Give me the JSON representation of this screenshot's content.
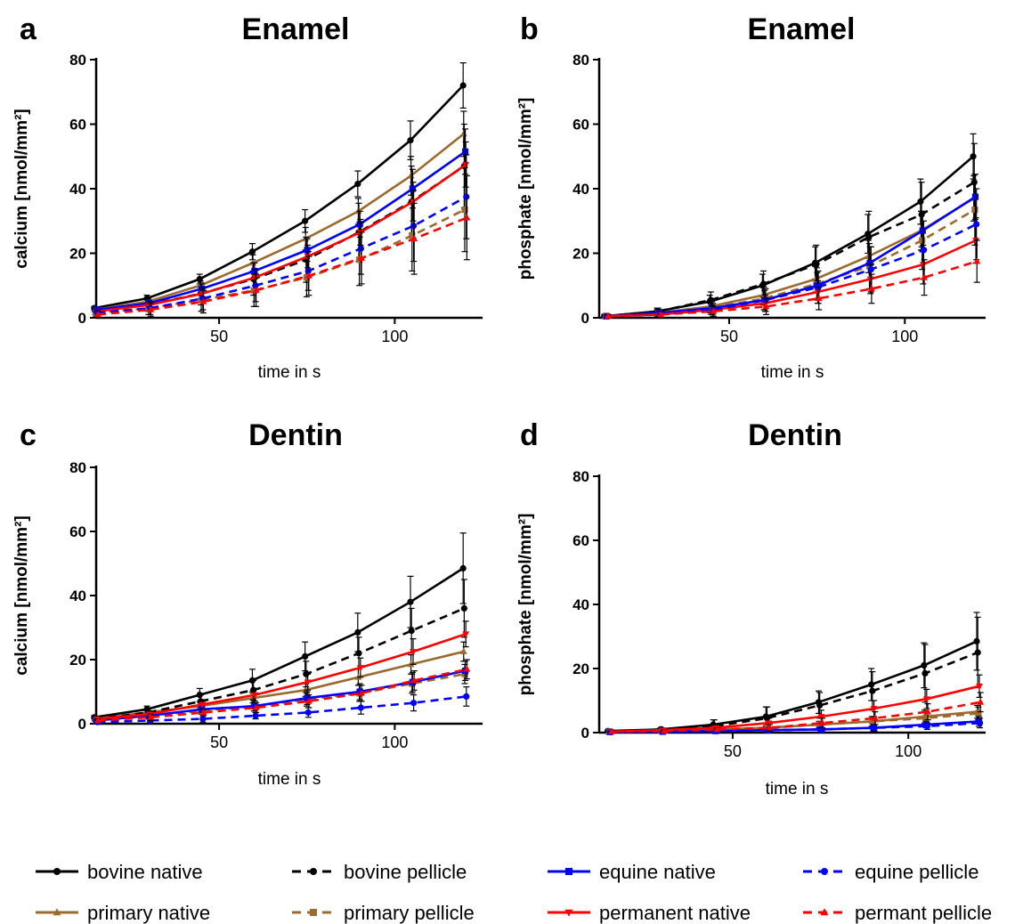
{
  "chart_data": [
    {
      "type": "line",
      "panel": "a",
      "title": "Enamel",
      "ylabel": "calcium [nmol/mm²]",
      "xlabel": "time in s",
      "xlim": [
        15,
        125
      ],
      "ylim": [
        0,
        80
      ],
      "xticks": [
        50,
        100
      ],
      "yticks": [
        0,
        20,
        40,
        60,
        80
      ],
      "x": [
        15,
        30,
        45,
        60,
        75,
        90,
        105,
        120
      ],
      "series": [
        {
          "name": "bovine native",
          "color": "#000000",
          "dashed": false,
          "marker": "circle",
          "values": [
            3,
            6,
            12,
            20.5,
            30,
            41.5,
            55,
            72
          ],
          "err": [
            0.5,
            1,
            1.5,
            2.5,
            3.5,
            4,
            6,
            7
          ]
        },
        {
          "name": "primary native",
          "color": "#9C6A2F",
          "dashed": false,
          "marker": "triangle-up",
          "values": [
            2.5,
            5,
            10,
            17,
            24.5,
            33,
            44,
            57
          ],
          "err": [
            0.5,
            1,
            1.5,
            2.5,
            3.5,
            4,
            6,
            7
          ]
        },
        {
          "name": "bovine pellicle",
          "color": "#000000",
          "dashed": true,
          "marker": "circle",
          "values": [
            2,
            4,
            7.5,
            12,
            18,
            26.5,
            36,
            47
          ],
          "err": [
            1,
            2,
            3.5,
            5,
            7,
            9,
            11,
            13
          ]
        },
        {
          "name": "primary pellicle",
          "color": "#9C6A2F",
          "dashed": true,
          "marker": "square",
          "values": [
            1.5,
            3,
            5.5,
            8.5,
            12.5,
            18,
            25.5,
            33.5
          ],
          "err": [
            1,
            2,
            3.5,
            5,
            6,
            8,
            11,
            13
          ]
        },
        {
          "name": "equine native",
          "color": "#0000FF",
          "dashed": false,
          "marker": "square",
          "values": [
            2.5,
            4.5,
            9,
            14.5,
            21,
            29,
            40,
            51.5
          ],
          "err": [
            0.5,
            1,
            1.5,
            2.5,
            3.5,
            4,
            6,
            7
          ]
        },
        {
          "name": "permanent native",
          "color": "#FF0000",
          "dashed": false,
          "marker": "triangle-down",
          "values": [
            2,
            4,
            7.5,
            12.5,
            19,
            26.5,
            36,
            47.5
          ],
          "err": [
            0.5,
            1,
            1.5,
            2.5,
            3.5,
            4,
            6,
            7
          ]
        },
        {
          "name": "equine pellicle",
          "color": "#0000FF",
          "dashed": true,
          "marker": "circle",
          "values": [
            1.5,
            3,
            6,
            10,
            14.5,
            21.5,
            28.5,
            37.5
          ],
          "err": [
            1,
            2,
            3.5,
            5,
            6,
            8,
            11,
            13
          ]
        },
        {
          "name": "permant pellicle",
          "color": "#FF0000",
          "dashed": true,
          "marker": "triangle-up",
          "values": [
            1,
            2.5,
            5,
            8.5,
            13,
            18.5,
            24.5,
            31
          ],
          "err": [
            1,
            2,
            3.5,
            5,
            6,
            8,
            11,
            13
          ]
        }
      ]
    },
    {
      "type": "line",
      "panel": "b",
      "title": "Enamel",
      "ylabel": "phosphate [nmol/mm²]",
      "xlabel": "time in s",
      "xlim": [
        13,
        123
      ],
      "ylim": [
        0,
        80
      ],
      "xticks": [
        50,
        100
      ],
      "yticks": [
        0,
        20,
        40,
        60,
        80
      ],
      "x": [
        15,
        30,
        45,
        60,
        75,
        90,
        105,
        120
      ],
      "series": [
        {
          "name": "bovine native",
          "color": "#000000",
          "dashed": false,
          "marker": "circle",
          "values": [
            0.5,
            2,
            5,
            10,
            17,
            26,
            36,
            50
          ],
          "err": [
            0.5,
            1,
            2,
            3.5,
            5,
            6,
            7,
            7
          ]
        },
        {
          "name": "primary native",
          "color": "#9C6A2F",
          "dashed": false,
          "marker": "triangle-up",
          "values": [
            0.5,
            1.5,
            3.5,
            7,
            12,
            19,
            27,
            37
          ],
          "err": [
            0.5,
            1,
            2,
            3,
            4,
            5,
            6,
            7
          ]
        },
        {
          "name": "bovine pellicle",
          "color": "#000000",
          "dashed": true,
          "marker": "circle",
          "values": [
            0.5,
            2,
            5.5,
            10.5,
            16.5,
            25,
            32,
            42
          ],
          "err": [
            0.5,
            1,
            2.5,
            4,
            6,
            8,
            10,
            12
          ]
        },
        {
          "name": "primary pellicle",
          "color": "#9C6A2F",
          "dashed": true,
          "marker": "square",
          "values": [
            0.5,
            1.5,
            3,
            6,
            10.5,
            16,
            24,
            33.5
          ],
          "err": [
            0.5,
            1,
            2,
            3.5,
            5,
            7,
            9,
            11
          ]
        },
        {
          "name": "equine native",
          "color": "#0000FF",
          "dashed": false,
          "marker": "square",
          "values": [
            0.5,
            1.5,
            3,
            5.5,
            10,
            17,
            27,
            37.5
          ],
          "err": [
            0.5,
            1,
            2,
            3,
            4,
            5,
            6,
            7
          ]
        },
        {
          "name": "permanent native",
          "color": "#FF0000",
          "dashed": false,
          "marker": "triangle-down",
          "values": [
            0.5,
            1,
            2.5,
            4.5,
            8,
            12,
            16.5,
            24
          ],
          "err": [
            0.5,
            1,
            1.5,
            2.5,
            3.5,
            4.5,
            6,
            7
          ]
        },
        {
          "name": "equine pellicle",
          "color": "#0000FF",
          "dashed": true,
          "marker": "circle",
          "values": [
            0.5,
            1,
            2.5,
            5.5,
            9.5,
            15,
            21,
            29
          ],
          "err": [
            0.5,
            1,
            2,
            3.5,
            5,
            7,
            9,
            11
          ]
        },
        {
          "name": "permant pellicle",
          "color": "#FF0000",
          "dashed": true,
          "marker": "triangle-up",
          "values": [
            0.5,
            1,
            2,
            3.5,
            6,
            9,
            12.5,
            17.5
          ],
          "err": [
            0.5,
            1,
            1.5,
            2.5,
            3.5,
            4.5,
            5.5,
            6.5
          ]
        }
      ]
    },
    {
      "type": "line",
      "panel": "c",
      "title": "Dentin",
      "ylabel": "calcium [nmol/mm²]",
      "xlabel": "time in s",
      "xlim": [
        15,
        125
      ],
      "ylim": [
        0,
        80
      ],
      "xticks": [
        50,
        100
      ],
      "yticks": [
        0,
        20,
        40,
        60,
        80
      ],
      "x": [
        15,
        30,
        45,
        60,
        75,
        90,
        105,
        120
      ],
      "series": [
        {
          "name": "bovine native",
          "color": "#000000",
          "dashed": false,
          "marker": "circle",
          "values": [
            2,
            4.5,
            9,
            13.5,
            21,
            28.5,
            38,
            48.5
          ],
          "err": [
            0.5,
            1,
            2,
            3.5,
            4.5,
            6,
            8,
            11
          ]
        },
        {
          "name": "primary native",
          "color": "#9C6A2F",
          "dashed": false,
          "marker": "triangle-up",
          "values": [
            1.5,
            3.5,
            5.5,
            8,
            10.5,
            14.5,
            18.5,
            22.5
          ],
          "err": [
            0.5,
            1,
            1,
            1.5,
            2,
            2.5,
            3,
            3
          ]
        },
        {
          "name": "bovine pellicle",
          "color": "#000000",
          "dashed": true,
          "marker": "circle",
          "values": [
            1.5,
            3.5,
            7,
            10.5,
            15.5,
            22,
            29,
            36
          ],
          "err": [
            0.5,
            1,
            2,
            3,
            4,
            5,
            7,
            9
          ]
        },
        {
          "name": "primary pellicle",
          "color": "#9C6A2F",
          "dashed": true,
          "marker": "square",
          "values": [
            1,
            2.5,
            4,
            5.5,
            7.5,
            9.5,
            12.5,
            15.5
          ],
          "err": [
            0.5,
            1,
            1,
            1.5,
            2,
            2.5,
            3,
            3
          ]
        },
        {
          "name": "equine native",
          "color": "#0000FF",
          "dashed": false,
          "marker": "square",
          "values": [
            1,
            2.5,
            4.5,
            5.5,
            8,
            10,
            13,
            16.5
          ],
          "err": [
            0.5,
            1,
            1,
            1.5,
            2,
            2.5,
            3,
            3
          ]
        },
        {
          "name": "permanent native",
          "color": "#FF0000",
          "dashed": false,
          "marker": "triangle-down",
          "values": [
            1.5,
            3,
            6,
            9,
            13,
            17.5,
            22.5,
            28
          ],
          "err": [
            0.5,
            1,
            1.5,
            2,
            2.5,
            3,
            4,
            4
          ]
        },
        {
          "name": "equine pellicle",
          "color": "#0000FF",
          "dashed": true,
          "marker": "circle",
          "values": [
            0.5,
            1,
            1.5,
            2.5,
            3.5,
            5,
            6.5,
            8.5
          ],
          "err": [
            0.5,
            0.5,
            1,
            1,
            1.5,
            2,
            2.5,
            3
          ]
        },
        {
          "name": "permant pellicle",
          "color": "#FF0000",
          "dashed": true,
          "marker": "triangle-up",
          "values": [
            1,
            2,
            3.5,
            5,
            7,
            9.5,
            13.5,
            17
          ],
          "err": [
            0.5,
            1,
            1,
            1.5,
            2,
            2.5,
            3,
            3
          ]
        }
      ]
    },
    {
      "type": "line",
      "panel": "d",
      "title": "Dentin",
      "ylabel": "phosphate [nmol/mm²]",
      "xlabel": "time in s",
      "xlim": [
        12,
        122
      ],
      "ylim": [
        0,
        80
      ],
      "xticks": [
        50,
        100
      ],
      "yticks": [
        0,
        20,
        40,
        60,
        80
      ],
      "x": [
        15,
        30,
        45,
        60,
        75,
        90,
        105,
        120
      ],
      "series": [
        {
          "name": "bovine native",
          "color": "#000000",
          "dashed": false,
          "marker": "circle",
          "values": [
            0.5,
            1,
            2.5,
            5,
            9.5,
            15,
            21,
            28.5
          ],
          "err": [
            0.3,
            0.5,
            1.5,
            3,
            3.5,
            5,
            7,
            9
          ]
        },
        {
          "name": "primary native",
          "color": "#9C6A2F",
          "dashed": false,
          "marker": "triangle-up",
          "values": [
            0.3,
            0.5,
            1,
            1.5,
            2.5,
            3.5,
            5,
            6.5
          ],
          "err": [
            0.2,
            0.3,
            0.5,
            1,
            1,
            1.5,
            2,
            2
          ]
        },
        {
          "name": "bovine pellicle",
          "color": "#000000",
          "dashed": true,
          "marker": "circle",
          "values": [
            0.3,
            1,
            2,
            4.5,
            8.5,
            13,
            18.5,
            25
          ],
          "err": [
            0.3,
            0.5,
            2,
            3.5,
            4,
            6,
            9,
            11
          ]
        },
        {
          "name": "primary pellicle",
          "color": "#9C6A2F",
          "dashed": true,
          "marker": "square",
          "values": [
            0.3,
            0.5,
            1,
            1.5,
            2.5,
            3.5,
            4.5,
            6
          ],
          "err": [
            0.2,
            0.3,
            0.5,
            1,
            1,
            1.5,
            2,
            2
          ]
        },
        {
          "name": "equine native",
          "color": "#0000FF",
          "dashed": false,
          "marker": "square",
          "values": [
            0.2,
            0.3,
            0.5,
            0.8,
            1,
            1.5,
            2.5,
            3.5
          ],
          "err": [
            0.2,
            0.3,
            0.5,
            0.5,
            0.5,
            1,
            1,
            1.5
          ]
        },
        {
          "name": "permanent native",
          "color": "#FF0000",
          "dashed": false,
          "marker": "triangle-down",
          "values": [
            0.3,
            0.8,
            1.5,
            3,
            5,
            7.5,
            10.5,
            14.5
          ],
          "err": [
            0.2,
            0.5,
            1,
            1.5,
            2,
            2.5,
            3,
            3.5
          ]
        },
        {
          "name": "equine pellicle",
          "color": "#0000FF",
          "dashed": true,
          "marker": "circle",
          "values": [
            0.2,
            0.3,
            0.5,
            0.8,
            1,
            1.5,
            2,
            3
          ],
          "err": [
            0.2,
            0.3,
            0.5,
            0.5,
            0.5,
            1,
            1,
            1.5
          ]
        },
        {
          "name": "permant pellicle",
          "color": "#FF0000",
          "dashed": true,
          "marker": "triangle-up",
          "values": [
            0.3,
            0.5,
            1,
            1.5,
            3,
            4.5,
            6.5,
            9.5
          ],
          "err": [
            0.2,
            0.3,
            0.5,
            1,
            1.5,
            2,
            2.5,
            3
          ]
        }
      ]
    }
  ],
  "legend": [
    {
      "label": "bovine native",
      "color": "#000000",
      "dashed": false,
      "marker": "circle"
    },
    {
      "label": "primary native",
      "color": "#9C6A2F",
      "dashed": false,
      "marker": "triangle-up"
    },
    {
      "label": "bovine pellicle",
      "color": "#000000",
      "dashed": true,
      "marker": "circle"
    },
    {
      "label": "primary pellicle",
      "color": "#9C6A2F",
      "dashed": true,
      "marker": "square"
    },
    {
      "label": "equine native",
      "color": "#0000FF",
      "dashed": false,
      "marker": "square"
    },
    {
      "label": "permanent native",
      "color": "#FF0000",
      "dashed": false,
      "marker": "triangle-down"
    },
    {
      "label": "equine pellicle",
      "color": "#0000FF",
      "dashed": true,
      "marker": "circle"
    },
    {
      "label": "permant pellicle",
      "color": "#FF0000",
      "dashed": true,
      "marker": "triangle-up"
    }
  ]
}
